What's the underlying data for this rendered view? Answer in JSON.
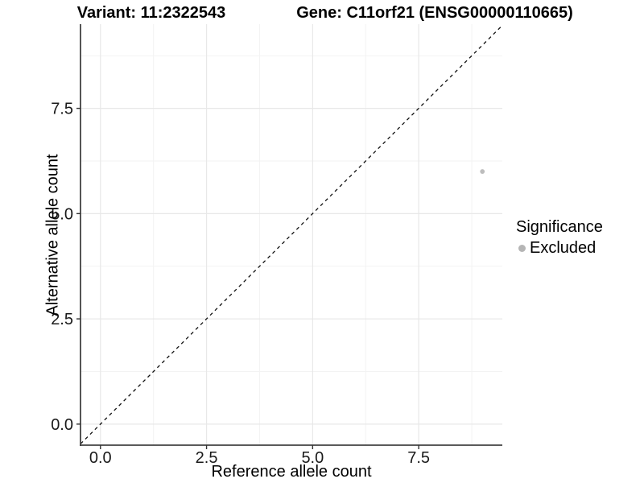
{
  "titles": {
    "variant": "Variant: 11:2322543",
    "gene": "Gene: C11orf21 (ENSG00000110665)"
  },
  "axes": {
    "x_label": "Reference allele count",
    "y_label": "Alternative allele count"
  },
  "legend": {
    "title": "Significance",
    "items": [
      {
        "label": "Excluded",
        "color": "#b5b5b5",
        "marker": "circle-icon"
      }
    ]
  },
  "chart_data": {
    "type": "scatter",
    "title": "Variant: 11:2322543  /  Gene: C11orf21 (ENSG00000110665)",
    "xlabel": "Reference allele count",
    "ylabel": "Alternative allele count",
    "xlim": [
      -0.47,
      9.47
    ],
    "ylim": [
      -0.5,
      9.5
    ],
    "x_ticks": [
      0,
      2.5,
      5,
      7.5
    ],
    "x_tick_labels": [
      "0.0",
      "2.5",
      "5.0",
      "7.5"
    ],
    "y_ticks": [
      0,
      2.5,
      5,
      7.5
    ],
    "y_tick_labels": [
      "0.0",
      "2.5",
      "5.0",
      "7.5"
    ],
    "x_minor_ticks": [
      1.25,
      3.75,
      6.25,
      8.75
    ],
    "y_minor_ticks": [
      1.25,
      3.75,
      6.25,
      8.75
    ],
    "grid": "major+minor",
    "legend_position": "right",
    "legend_title": "Significance",
    "series": [
      {
        "name": "Excluded",
        "color": "#bdbdbd",
        "points": [
          {
            "x": 9,
            "y": 6
          }
        ]
      }
    ],
    "reference_line": {
      "kind": "identity y=x",
      "style": "dashed",
      "color": "#111111"
    },
    "style": {
      "grid_major_color": "#e8e8e8",
      "grid_minor_color": "#f3f3f3",
      "axis_line_color": "#424242",
      "tick_color": "#333333",
      "point_radius": 2.9,
      "background": "#ffffff"
    }
  }
}
